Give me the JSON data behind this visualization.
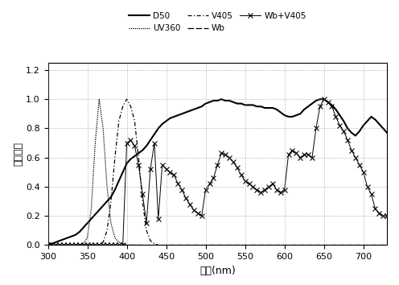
{
  "title": "",
  "xlabel": "波長(nm)",
  "ylabel": "分光強度",
  "xlim": [
    300,
    730
  ],
  "ylim": [
    0,
    1.25
  ],
  "yticks": [
    0,
    0.2,
    0.4,
    0.6,
    0.8,
    1.0,
    1.2
  ],
  "xticks": [
    300,
    350,
    400,
    450,
    500,
    550,
    600,
    650,
    700
  ],
  "D50": {
    "x": [
      300,
      305,
      310,
      315,
      320,
      325,
      330,
      335,
      340,
      345,
      350,
      355,
      360,
      365,
      370,
      375,
      380,
      385,
      390,
      395,
      400,
      405,
      410,
      415,
      420,
      425,
      430,
      435,
      440,
      445,
      450,
      455,
      460,
      465,
      470,
      475,
      480,
      485,
      490,
      495,
      500,
      505,
      510,
      515,
      520,
      525,
      530,
      535,
      540,
      545,
      550,
      555,
      560,
      565,
      570,
      575,
      580,
      585,
      590,
      595,
      600,
      605,
      610,
      615,
      620,
      625,
      630,
      635,
      640,
      645,
      650,
      655,
      660,
      665,
      670,
      675,
      680,
      685,
      690,
      695,
      700,
      705,
      710,
      715,
      720,
      725,
      730
    ],
    "y": [
      0.01,
      0.01,
      0.02,
      0.03,
      0.04,
      0.05,
      0.06,
      0.07,
      0.09,
      0.12,
      0.15,
      0.18,
      0.21,
      0.24,
      0.27,
      0.3,
      0.33,
      0.38,
      0.44,
      0.5,
      0.56,
      0.59,
      0.61,
      0.63,
      0.65,
      0.68,
      0.72,
      0.76,
      0.8,
      0.83,
      0.85,
      0.87,
      0.88,
      0.89,
      0.9,
      0.91,
      0.92,
      0.93,
      0.94,
      0.95,
      0.97,
      0.98,
      0.99,
      0.99,
      1.0,
      0.99,
      0.99,
      0.98,
      0.97,
      0.97,
      0.96,
      0.96,
      0.96,
      0.95,
      0.95,
      0.94,
      0.94,
      0.94,
      0.93,
      0.91,
      0.89,
      0.88,
      0.88,
      0.89,
      0.9,
      0.93,
      0.95,
      0.97,
      0.99,
      1.0,
      1.0,
      0.98,
      0.96,
      0.93,
      0.89,
      0.85,
      0.8,
      0.77,
      0.75,
      0.78,
      0.82,
      0.85,
      0.88,
      0.86,
      0.83,
      0.8,
      0.77
    ]
  },
  "UV360": {
    "x": [
      300,
      305,
      310,
      315,
      320,
      325,
      330,
      335,
      340,
      345,
      350,
      355,
      360,
      365,
      370,
      375,
      380,
      385,
      390,
      395,
      400,
      405,
      410,
      415,
      420
    ],
    "y": [
      0.0,
      0.0,
      0.0,
      0.0,
      0.0,
      0.0,
      0.0,
      0.0,
      0.0,
      0.01,
      0.05,
      0.25,
      0.7,
      1.0,
      0.8,
      0.4,
      0.15,
      0.05,
      0.02,
      0.01,
      0.0,
      0.0,
      0.0,
      0.0,
      0.0
    ]
  },
  "V405": {
    "x": [
      300,
      305,
      310,
      315,
      320,
      325,
      330,
      335,
      340,
      345,
      350,
      355,
      360,
      365,
      370,
      375,
      380,
      385,
      390,
      395,
      400,
      405,
      410,
      415,
      420,
      425,
      430,
      435,
      440
    ],
    "y": [
      0.0,
      0.0,
      0.0,
      0.0,
      0.0,
      0.0,
      0.0,
      0.0,
      0.0,
      0.0,
      0.0,
      0.0,
      0.0,
      0.0,
      0.02,
      0.1,
      0.3,
      0.6,
      0.85,
      0.95,
      1.0,
      0.95,
      0.85,
      0.6,
      0.3,
      0.1,
      0.03,
      0.01,
      0.0
    ]
  },
  "Wb": {
    "x": [
      300,
      310,
      320,
      330,
      340,
      350,
      360,
      370,
      380,
      390,
      400,
      410,
      420,
      430,
      440,
      450,
      460,
      470,
      480,
      490,
      500,
      510,
      520,
      530,
      540,
      550,
      560,
      570,
      580,
      590,
      600,
      610,
      620,
      630,
      640,
      650,
      660,
      670,
      680,
      690,
      700,
      710,
      720,
      730
    ],
    "y": [
      0.0,
      0.0,
      0.0,
      0.0,
      0.0,
      0.0,
      0.0,
      0.0,
      0.0,
      0.0,
      0.0,
      0.0,
      0.0,
      0.0,
      0.0,
      0.0,
      0.0,
      0.0,
      0.0,
      0.0,
      0.0,
      0.0,
      0.0,
      0.0,
      0.0,
      0.0,
      0.0,
      0.0,
      0.0,
      0.0,
      0.0,
      0.0,
      0.0,
      0.0,
      0.0,
      0.0,
      0.0,
      0.0,
      0.0,
      0.0,
      0.0,
      0.0,
      0.0,
      0.0
    ]
  },
  "WbV405": {
    "x": [
      300,
      305,
      310,
      315,
      320,
      325,
      330,
      335,
      340,
      345,
      350,
      355,
      360,
      365,
      370,
      375,
      380,
      385,
      390,
      395,
      400,
      405,
      410,
      415,
      420,
      425,
      430,
      435,
      440,
      445,
      450,
      455,
      460,
      465,
      470,
      475,
      480,
      485,
      490,
      495,
      500,
      505,
      510,
      515,
      520,
      525,
      530,
      535,
      540,
      545,
      550,
      555,
      560,
      565,
      570,
      575,
      580,
      585,
      590,
      595,
      600,
      605,
      610,
      615,
      620,
      625,
      630,
      635,
      640,
      645,
      650,
      655,
      660,
      665,
      670,
      675,
      680,
      685,
      690,
      695,
      700,
      705,
      710,
      715,
      720,
      725,
      730
    ],
    "y": [
      0.0,
      0.0,
      0.0,
      0.0,
      0.0,
      0.0,
      0.0,
      0.0,
      0.0,
      0.0,
      0.0,
      0.0,
      0.0,
      0.0,
      0.0,
      0.0,
      0.0,
      0.0,
      0.0,
      0.0,
      0.7,
      0.72,
      0.68,
      0.55,
      0.35,
      0.15,
      0.52,
      0.7,
      0.18,
      0.55,
      0.52,
      0.5,
      0.48,
      0.42,
      0.38,
      0.32,
      0.28,
      0.24,
      0.22,
      0.2,
      0.38,
      0.42,
      0.46,
      0.55,
      0.63,
      0.62,
      0.6,
      0.57,
      0.53,
      0.48,
      0.44,
      0.42,
      0.4,
      0.38,
      0.36,
      0.38,
      0.4,
      0.42,
      0.38,
      0.36,
      0.38,
      0.62,
      0.65,
      0.63,
      0.6,
      0.62,
      0.62,
      0.6,
      0.8,
      0.95,
      1.0,
      0.98,
      0.95,
      0.88,
      0.82,
      0.78,
      0.72,
      0.65,
      0.6,
      0.55,
      0.5,
      0.4,
      0.35,
      0.25,
      0.22,
      0.2,
      0.2
    ]
  },
  "bg_color": "#ffffff",
  "grid_color": "#888888",
  "line_color": "#000000"
}
